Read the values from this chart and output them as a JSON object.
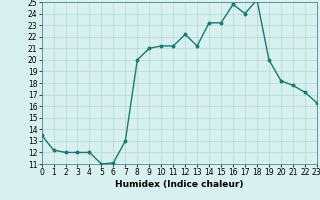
{
  "xlabel": "Humidex (Indice chaleur)",
  "x": [
    0,
    1,
    2,
    3,
    4,
    5,
    6,
    7,
    8,
    9,
    10,
    11,
    12,
    13,
    14,
    15,
    16,
    17,
    18,
    19,
    20,
    21,
    22,
    23
  ],
  "y": [
    13.5,
    12.2,
    12.0,
    12.0,
    12.0,
    11.0,
    11.1,
    13.0,
    20.0,
    21.0,
    21.2,
    21.2,
    22.2,
    21.2,
    23.2,
    23.2,
    24.8,
    24.0,
    25.2,
    20.0,
    18.2,
    17.8,
    17.2,
    16.3
  ],
  "line_color": "#1a7a6e",
  "marker": "o",
  "marker_size": 1.8,
  "line_width": 1.0,
  "bg_color": "#d8f0f0",
  "grid_color": "#b0d8d4",
  "ylim": [
    11,
    25
  ],
  "xlim": [
    0,
    23
  ],
  "yticks": [
    11,
    12,
    13,
    14,
    15,
    16,
    17,
    18,
    19,
    20,
    21,
    22,
    23,
    24,
    25
  ],
  "xticks": [
    0,
    1,
    2,
    3,
    4,
    5,
    6,
    7,
    8,
    9,
    10,
    11,
    12,
    13,
    14,
    15,
    16,
    17,
    18,
    19,
    20,
    21,
    22,
    23
  ],
  "tick_fontsize": 5.5,
  "xlabel_fontsize": 6.5,
  "xlabel_fontweight": "bold"
}
